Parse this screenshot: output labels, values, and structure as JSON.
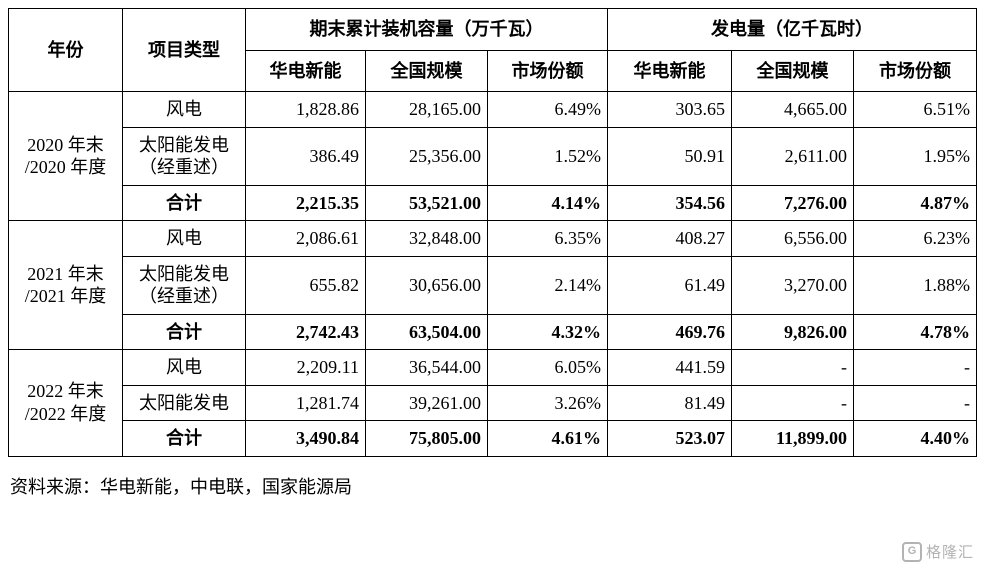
{
  "table": {
    "header": {
      "year": "年份",
      "project_type": "项目类型",
      "capacity_group": "期末累计装机容量（万千瓦）",
      "generation_group": "发电量（亿千瓦时）",
      "sub_headers": [
        "华电新能",
        "全国规模",
        "市场份额"
      ]
    },
    "groups": [
      {
        "year": "2020 年末\n/2020 年度",
        "rows": [
          {
            "type": "风电",
            "bold": false,
            "values": [
              "1,828.86",
              "28,165.00",
              "6.49%",
              "303.65",
              "4,665.00",
              "6.51%"
            ]
          },
          {
            "type": "太阳能发电\n（经重述）",
            "bold": false,
            "values": [
              "386.49",
              "25,356.00",
              "1.52%",
              "50.91",
              "2,611.00",
              "1.95%"
            ]
          },
          {
            "type": "合计",
            "bold": true,
            "values": [
              "2,215.35",
              "53,521.00",
              "4.14%",
              "354.56",
              "7,276.00",
              "4.87%"
            ]
          }
        ]
      },
      {
        "year": "2021 年末\n/2021 年度",
        "rows": [
          {
            "type": "风电",
            "bold": false,
            "values": [
              "2,086.61",
              "32,848.00",
              "6.35%",
              "408.27",
              "6,556.00",
              "6.23%"
            ]
          },
          {
            "type": "太阳能发电\n（经重述）",
            "bold": false,
            "values": [
              "655.82",
              "30,656.00",
              "2.14%",
              "61.49",
              "3,270.00",
              "1.88%"
            ]
          },
          {
            "type": "合计",
            "bold": true,
            "values": [
              "2,742.43",
              "63,504.00",
              "4.32%",
              "469.76",
              "9,826.00",
              "4.78%"
            ]
          }
        ]
      },
      {
        "year": "2022 年末\n/2022 年度",
        "rows": [
          {
            "type": "风电",
            "bold": false,
            "values": [
              "2,209.11",
              "36,544.00",
              "6.05%",
              "441.59",
              "-",
              "-"
            ]
          },
          {
            "type": "太阳能发电",
            "bold": false,
            "values": [
              "1,281.74",
              "39,261.00",
              "3.26%",
              "81.49",
              "-",
              "-"
            ]
          },
          {
            "type": "合计",
            "bold": true,
            "values": [
              "3,490.84",
              "75,805.00",
              "4.61%",
              "523.07",
              "11,899.00",
              "4.40%"
            ]
          }
        ]
      }
    ],
    "footer": "资料来源：华电新能，中电联，国家能源局"
  },
  "watermark": {
    "icon": "G",
    "text": "格隆汇"
  }
}
